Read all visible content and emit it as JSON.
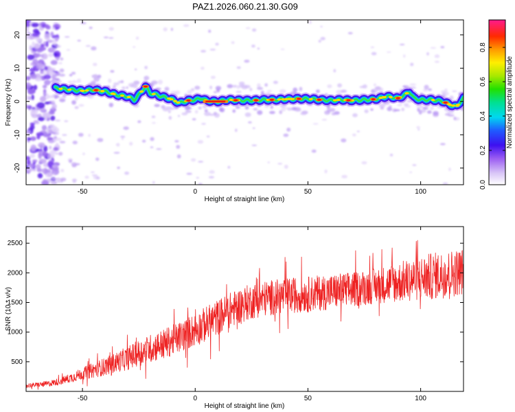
{
  "title": "PAZ1.2026.060.21.30.G09",
  "colors": {
    "snr_line": "#ee2222",
    "axis": "#000000",
    "background": "#ffffff"
  },
  "chart_data": [
    {
      "type": "heatmap",
      "name": "spectrogram",
      "xlabel": "Height of straight line (km)",
      "ylabel": "Frequency (Hz)",
      "xlim": [
        -75,
        119
      ],
      "ylim": [
        -25,
        24.5
      ],
      "xticks": [
        -50,
        0,
        50,
        100
      ],
      "yticks": [
        -20,
        -10,
        0,
        10,
        20
      ],
      "colorbar": {
        "label": "Normalized spectral amplitude",
        "range": [
          0.0,
          0.96
        ],
        "ticks": [
          0.0,
          0.2,
          0.4,
          0.6,
          0.8
        ],
        "colormap": "rainbow (white-lavender-violet-blue-cyan-green-yellow-orange-red-magenta)"
      },
      "ridge": {
        "description": "dominant frequency trace",
        "x": [
          -62,
          -55,
          -50,
          -45,
          -40,
          -35,
          -30,
          -27,
          -25,
          -22,
          -20,
          -17,
          -15,
          -12,
          -10,
          -7,
          -5,
          -3,
          0,
          3,
          5,
          10,
          15,
          20,
          25,
          30,
          35,
          40,
          45,
          50,
          55,
          60,
          65,
          70,
          75,
          80,
          85,
          90,
          93,
          95,
          97,
          100,
          105,
          110,
          113,
          116,
          119
        ],
        "y": [
          4,
          3.5,
          3.2,
          3.5,
          3,
          2,
          1.5,
          0.5,
          2,
          4.5,
          2.5,
          2,
          1.5,
          1,
          0.5,
          -0.5,
          0,
          0.3,
          0.5,
          1,
          0.2,
          0,
          0.5,
          0.3,
          0.3,
          0.5,
          0.5,
          0.7,
          0.8,
          0.8,
          0.5,
          0.3,
          0.5,
          0.3,
          0.5,
          0.7,
          1.5,
          1,
          2,
          3,
          1,
          0.5,
          0.5,
          0,
          -1,
          -1.5,
          1
        ]
      },
      "peak_amplitude_regions_x": [
        -44,
        -22,
        -3,
        10,
        18,
        27,
        34,
        46,
        55,
        68,
        79,
        90,
        111
      ]
    },
    {
      "type": "line",
      "name": "snr",
      "xlabel": "Height of straight line (km)",
      "ylabel": "SNR (10 * v/v)",
      "xlim": [
        -75,
        119
      ],
      "ylim": [
        0,
        2780
      ],
      "xticks": [
        -50,
        0,
        50,
        100
      ],
      "yticks": [
        500,
        1000,
        1500,
        2000,
        2500
      ],
      "series": [
        {
          "name": "SNR",
          "x": [
            -75,
            -70,
            -65,
            -60,
            -55,
            -50,
            -45,
            -40,
            -35,
            -30,
            -25,
            -20,
            -15,
            -10,
            -5,
            0,
            5,
            10,
            15,
            20,
            25,
            30,
            35,
            40,
            45,
            50,
            55,
            60,
            65,
            70,
            75,
            80,
            85,
            90,
            95,
            100,
            105,
            110,
            115,
            119
          ],
          "mean": [
            100,
            110,
            130,
            170,
            230,
            300,
            360,
            420,
            490,
            560,
            650,
            720,
            790,
            860,
            950,
            1040,
            1140,
            1250,
            1360,
            1450,
            1520,
            1560,
            1590,
            1610,
            1630,
            1640,
            1660,
            1680,
            1700,
            1720,
            1750,
            1780,
            1810,
            1840,
            1880,
            1910,
            1940,
            1970,
            2000,
            2030
          ],
          "amplitude": [
            40,
            40,
            50,
            60,
            80,
            100,
            130,
            150,
            170,
            200,
            220,
            240,
            250,
            260,
            270,
            280,
            300,
            300,
            300,
            300,
            300,
            300,
            300,
            300,
            300,
            300,
            300,
            300,
            300,
            300,
            300,
            300,
            320,
            340,
            360,
            380,
            400,
            400,
            400,
            400
          ]
        }
      ]
    }
  ]
}
